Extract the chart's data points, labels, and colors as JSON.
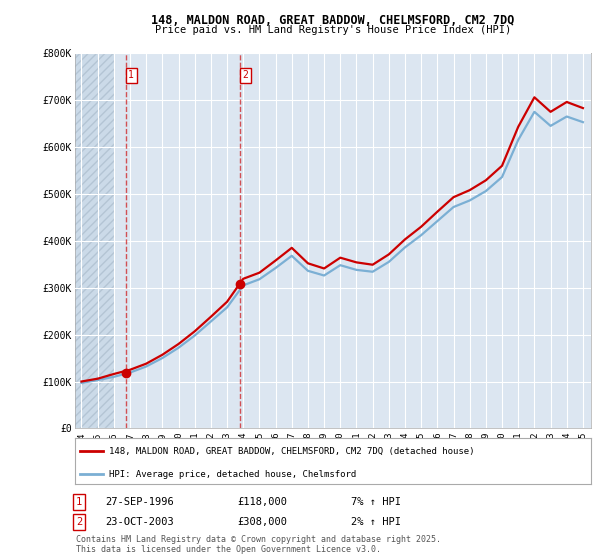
{
  "title_line1": "148, MALDON ROAD, GREAT BADDOW, CHELMSFORD, CM2 7DQ",
  "title_line2": "Price paid vs. HM Land Registry's House Price Index (HPI)",
  "hpi_label": "HPI: Average price, detached house, Chelmsford",
  "property_label": "148, MALDON ROAD, GREAT BADDOW, CHELMSFORD, CM2 7DQ (detached house)",
  "background_color": "#ffffff",
  "plot_bg_color": "#dce6f1",
  "grid_color": "#ffffff",
  "property_color": "#cc0000",
  "hpi_color": "#7bafd4",
  "transaction1_date": 1996.74,
  "transaction1_price": 118000,
  "transaction2_date": 2003.81,
  "transaction2_price": 308000,
  "footer_text": "Contains HM Land Registry data © Crown copyright and database right 2025.\nThis data is licensed under the Open Government Licence v3.0.",
  "annotation1": [
    "1",
    "27-SEP-1996",
    "£118,000",
    "7% ↑ HPI"
  ],
  "annotation2": [
    "2",
    "23-OCT-2003",
    "£308,000",
    "2% ↑ HPI"
  ],
  "hpi_years": [
    1994,
    1995,
    1996,
    1997,
    1998,
    1999,
    2000,
    2001,
    2002,
    2003,
    2004,
    2005,
    2006,
    2007,
    2008,
    2009,
    2010,
    2011,
    2012,
    2013,
    2014,
    2015,
    2016,
    2017,
    2018,
    2019,
    2020,
    2021,
    2022,
    2023,
    2024,
    2025
  ],
  "hpi_values": [
    97000,
    103000,
    110000,
    119000,
    132000,
    150000,
    172000,
    198000,
    228000,
    258000,
    305000,
    318000,
    342000,
    368000,
    336000,
    326000,
    348000,
    338000,
    334000,
    355000,
    386000,
    412000,
    442000,
    472000,
    486000,
    506000,
    536000,
    615000,
    675000,
    645000,
    665000,
    653000
  ],
  "prop_years": [
    1994,
    1995,
    1996,
    1997,
    1998,
    1999,
    2000,
    2001,
    2002,
    2003,
    2004,
    2005,
    2006,
    2007,
    2008,
    2009,
    2010,
    2011,
    2012,
    2013,
    2014,
    2015,
    2016,
    2017,
    2018,
    2019,
    2020,
    2021,
    2022,
    2023,
    2024,
    2025
  ],
  "prop_values": [
    100000,
    106000,
    116000,
    125000,
    138000,
    157000,
    180000,
    207000,
    238000,
    270000,
    319000,
    332000,
    358000,
    385000,
    352000,
    341000,
    364000,
    354000,
    349000,
    371000,
    403000,
    430000,
    462000,
    493000,
    508000,
    529000,
    560000,
    643000,
    706000,
    675000,
    696000,
    683000
  ],
  "ylim": [
    0,
    800000
  ],
  "yticks": [
    0,
    100000,
    200000,
    300000,
    400000,
    500000,
    600000,
    700000,
    800000
  ],
  "ytick_labels": [
    "£0",
    "£100K",
    "£200K",
    "£300K",
    "£400K",
    "£500K",
    "£600K",
    "£700K",
    "£800K"
  ],
  "xlim_start": 1993.6,
  "xlim_end": 2025.5,
  "hatch_end": 1996.0,
  "xtick_years": [
    1994,
    1995,
    1996,
    1997,
    1998,
    1999,
    2000,
    2001,
    2002,
    2003,
    2004,
    2005,
    2006,
    2007,
    2008,
    2009,
    2010,
    2011,
    2012,
    2013,
    2014,
    2015,
    2016,
    2017,
    2018,
    2019,
    2020,
    2021,
    2022,
    2023,
    2024,
    2025
  ]
}
